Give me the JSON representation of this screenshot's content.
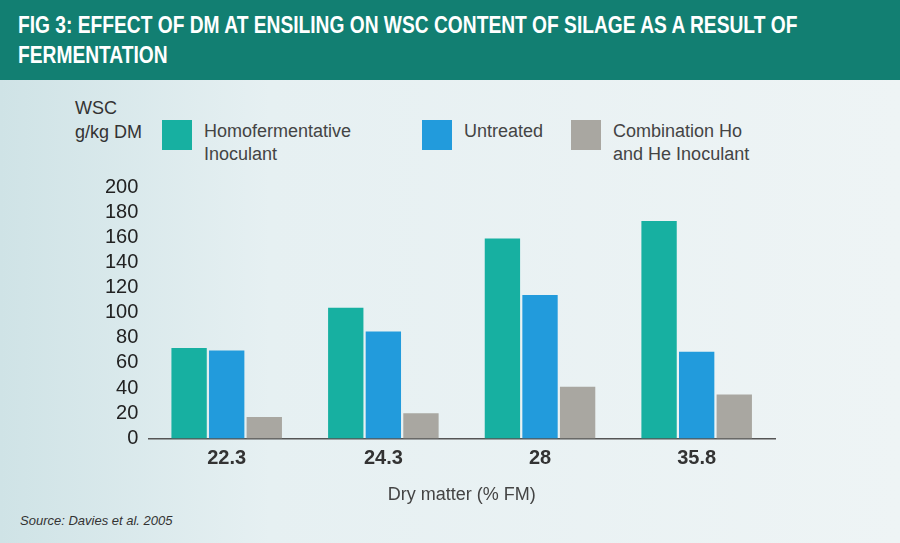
{
  "chart_data": {
    "type": "bar",
    "title": "FIG 3: EFFECT OF DM AT ENSILING ON WSC CONTENT OF SILAGE AS A RESULT OF FERMENTATION",
    "y_label": "WSC g/kg DM",
    "x_label": "Dry matter (% FM)",
    "categories": [
      "22.3",
      "24.3",
      "28",
      "35.8"
    ],
    "series": [
      {
        "name": "Homofermentative Inoculant",
        "color": "#17b0a1",
        "values": [
          72,
          104,
          159,
          173
        ]
      },
      {
        "name": "Untreated",
        "color": "#229bdc",
        "values": [
          70,
          85,
          114,
          69
        ]
      },
      {
        "name": "Combination Ho and He Inoculant",
        "color": "#a9a7a1",
        "values": [
          17,
          20,
          41,
          35
        ]
      }
    ],
    "ylim": [
      0,
      200
    ],
    "yticks": [
      0,
      20,
      40,
      60,
      80,
      100,
      120,
      140,
      160,
      180,
      200
    ],
    "grid": false,
    "legend": "top",
    "annotations": [
      "Source: Davies et al. 2005"
    ]
  }
}
